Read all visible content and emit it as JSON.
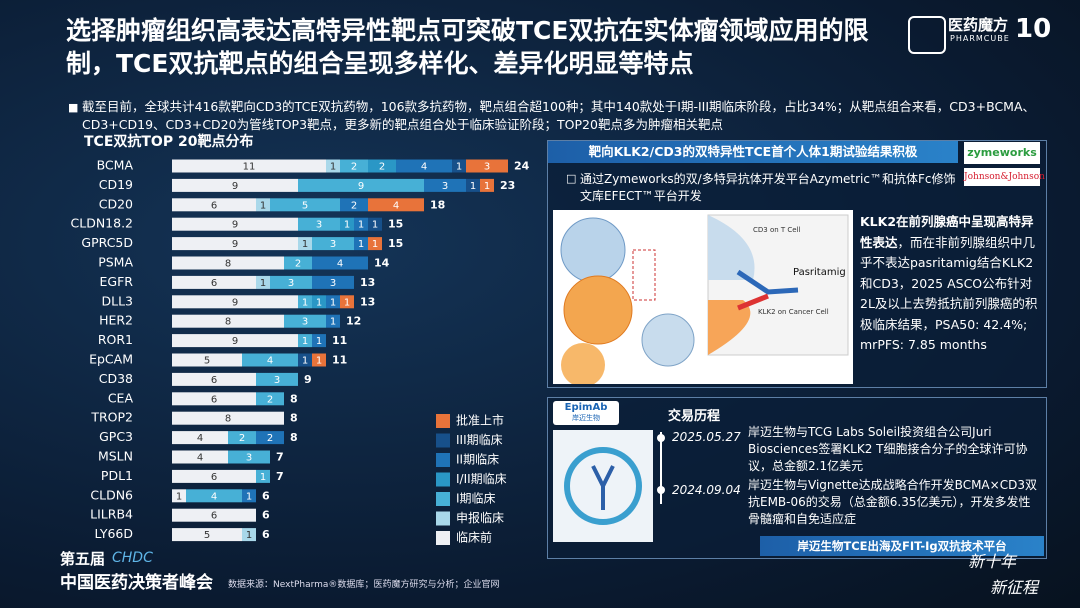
{
  "header": {
    "title": "选择肿瘤组织高表达高特异性靶点可突破TCE双抗在实体瘤领域应用的限制，TCE双抗靶点的组合呈现多样化、差异化明显等特点",
    "logo": "医药魔方",
    "logo_sub": "PHARMCUBE",
    "anniversary": "10"
  },
  "summary": "截至目前，全球共计416款靶向CD3的TCE双抗药物，106款多抗药物，靶点组合超100种；其中140款处于I期-III期临床阶段，占比34%；从靶点组合来看，CD3+BCMA、CD3+CD19、CD3+CD20为管线TOP3靶点，更多新的靶点组合处于临床验证阶段；TOP20靶点多为肿瘤相关靶点",
  "chart_data": {
    "type": "stacked-barh",
    "title": "TCE双抗TOP 20靶点分布",
    "categories": [
      "BCMA",
      "CD19",
      "CD20",
      "CLDN18.2",
      "GPRC5D",
      "PSMA",
      "EGFR",
      "DLL3",
      "HER2",
      "ROR1",
      "EpCAM",
      "CD38",
      "CEA",
      "TROP2",
      "GPC3",
      "MSLN",
      "PDL1",
      "CLDN6",
      "LILRB4",
      "LY66D"
    ],
    "series": [
      {
        "name": "批准上市",
        "color": "#e8733a",
        "values": [
          3,
          1,
          4,
          0,
          1,
          0,
          0,
          1,
          0,
          0,
          1,
          0,
          0,
          0,
          0,
          0,
          0,
          0,
          0,
          0
        ]
      },
      {
        "name": "III期临床",
        "color": "#17508a",
        "values": [
          1,
          1,
          0,
          1,
          0,
          0,
          0,
          0,
          0,
          0,
          1,
          0,
          0,
          0,
          0,
          0,
          0,
          0,
          0,
          0
        ]
      },
      {
        "name": "II期临床",
        "color": "#1f73b7",
        "values": [
          4,
          3,
          2,
          1,
          1,
          4,
          3,
          1,
          1,
          1,
          0,
          0,
          0,
          0,
          2,
          0,
          0,
          1,
          0,
          0
        ]
      },
      {
        "name": "I/II期临床",
        "color": "#2a97c6",
        "values": [
          2,
          0,
          0,
          1,
          0,
          0,
          0,
          1,
          0,
          0,
          0,
          0,
          0,
          0,
          0,
          0,
          0,
          0,
          0,
          0
        ]
      },
      {
        "name": "I期临床",
        "color": "#47b0d6",
        "values": [
          2,
          9,
          5,
          3,
          3,
          2,
          3,
          1,
          3,
          1,
          4,
          3,
          2,
          0,
          2,
          3,
          1,
          4,
          0,
          0
        ]
      },
      {
        "name": "申报临床",
        "color": "#a9d8ea",
        "values": [
          1,
          0,
          1,
          0,
          1,
          0,
          1,
          0,
          0,
          0,
          0,
          0,
          0,
          0,
          0,
          0,
          0,
          0,
          0,
          1
        ]
      },
      {
        "name": "临床前",
        "color": "#eef0f4",
        "values": [
          11,
          9,
          6,
          9,
          9,
          8,
          6,
          9,
          8,
          9,
          5,
          6,
          6,
          8,
          4,
          4,
          6,
          1,
          6,
          5
        ]
      }
    ],
    "totals": [
      24,
      23,
      18,
      15,
      15,
      14,
      13,
      13,
      12,
      11,
      11,
      9,
      8,
      8,
      8,
      7,
      7,
      6,
      6,
      6
    ]
  },
  "case": {
    "title": "靶向KLK2/CD3的双特异性TCE首个人体1期试验结果积极",
    "logos": [
      "zymeworks",
      "Johnson&Johnson"
    ],
    "bullet": "通过Zymeworks的双/多特异抗体开发平台Azymetric™和抗体Fc修饰文库EFECT™平台开发",
    "figure_labels": [
      "CD3 on T Cell",
      "Pasritamig",
      "KLK2 on Cancer Cell"
    ],
    "highlight": "KLK2在前列腺癌中呈现高特异性表达",
    "body": "，而在非前列腺组织中几乎不表达pasritamig结合KLK2和CD3，2025 ASCO公布针对2L及以上去势抵抗前列腺癌的积极临床结果，PSA50: 42.4%; mrPFS: 7.85 months"
  },
  "deals": {
    "logo": "EpimAb",
    "logo_sub": "岸迈生物",
    "title": "交易历程",
    "events": [
      {
        "date": "2025.05.27",
        "text": "岸迈生物与TCG Labs Soleil投资组合公司Juri Biosciences签署KLK2 T细胞接合分子的全球许可协议，总金额2.1亿美元"
      },
      {
        "date": "2024.09.04",
        "text": "岸迈生物与Vignette达成战略合作开发BCMA×CD3双抗EMB-06的交易（总金额6.35亿美元），开发多发性骨髓瘤和自免适应症"
      }
    ],
    "banner": "岸迈生物TCE出海及FIT-Ig双抗技术平台"
  },
  "footer": {
    "event_edition": "第五届",
    "event_brand": "CHDC",
    "event_name": "中国医药决策者峰会",
    "source": "数据来源：NextPharma®数据库；医药魔方研究与分析；企业官网",
    "slogan": [
      "新十年",
      "新征程"
    ]
  }
}
